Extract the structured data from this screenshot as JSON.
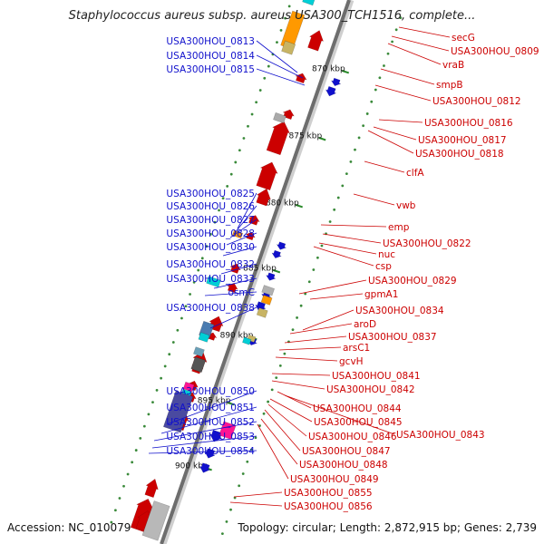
{
  "title": "Staphylococcus aureus subsp. aureus USA300_TCH1516, complete...",
  "accession": "Accession: NC_010079",
  "topology": "Topology: circular; Length: 2,872,915 bp; Genes: 2,739",
  "colors": {
    "forward": "#1010cc",
    "reverse": "#cc0000",
    "axis": "#777777",
    "tick": "#2a7a2a",
    "magenta": "#ff1493",
    "cyan": "#00cfd6",
    "orange": "#ff9900",
    "olive": "#c8b464",
    "navy": "#4a4aa0"
  },
  "scale": {
    "ticks": [
      "870 kbp",
      "875 kbp",
      "880 kbp",
      "885 kbp",
      "890 kbp",
      "895 kbp",
      "900 kbp"
    ]
  },
  "left_labels": [
    "USA300HOU_0813",
    "USA300HOU_0814",
    "USA300HOU_0815",
    "USA300HOU_0825",
    "USA300HOU_0826",
    "USA300HOU_0827",
    "USA300HOU_0828",
    "USA300HOU_0830",
    "USA300HOU_0832",
    "USA300HOU_0833",
    "osmC",
    "USA300HOU_0838",
    "USA300HOU_0850",
    "USA300HOU_0851",
    "USA300HOU_0852",
    "USA300HOU_0853",
    "USA300HOU_0854"
  ],
  "right_labels": [
    "secG",
    "USA300HOU_0809",
    "vraB",
    "smpB",
    "USA300HOU_0812",
    "USA300HOU_0816",
    "USA300HOU_0817",
    "USA300HOU_0818",
    "clfA",
    "vwb",
    "emp",
    "USA300HOU_0822",
    "nuc",
    "csp",
    "USA300HOU_0829",
    "gpmA1",
    "USA300HOU_0834",
    "aroD",
    "USA300HOU_0837",
    "arsC1",
    "gcvH",
    "USA300HOU_0841",
    "USA300HOU_0842",
    "USA300HOU_0844",
    "USA300HOU_0845",
    "USA300HOU_0846",
    "USA300HOU_0843",
    "USA300HOU_0847",
    "USA300HOU_0848",
    "USA300HOU_0849",
    "USA300HOU_0855",
    "USA300HOU_0856"
  ]
}
